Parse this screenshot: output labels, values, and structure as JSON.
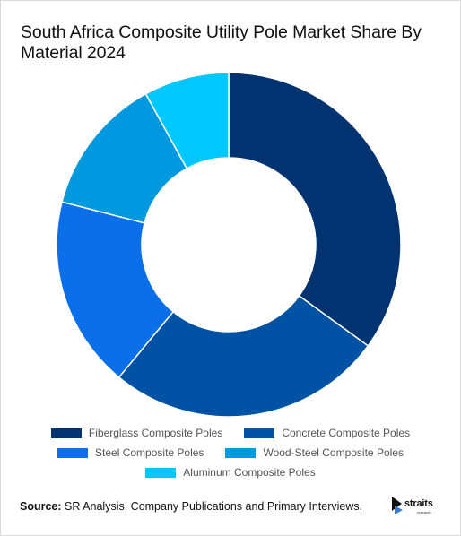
{
  "chart_data": {
    "type": "pie",
    "title": "South Africa Composite Utility Pole Market Share By Material 2024",
    "categories": [
      "Fiberglass Composite Poles",
      "Concrete Composite Poles",
      "Steel Composite Poles",
      "Wood-Steel Composite Poles",
      "Aluminum Composite Poles"
    ],
    "values": [
      35,
      26,
      18,
      13,
      8
    ],
    "colors": [
      "#003370",
      "#0052A5",
      "#0A6FE8",
      "#0099E0",
      "#00C8FF"
    ],
    "donut": true,
    "legend_position": "bottom"
  },
  "footer": {
    "source_label": "Source:",
    "source_text": "SR Analysis, Company Publications and Primary Interviews.",
    "logo_word": "straits",
    "logo_sub": "research"
  }
}
